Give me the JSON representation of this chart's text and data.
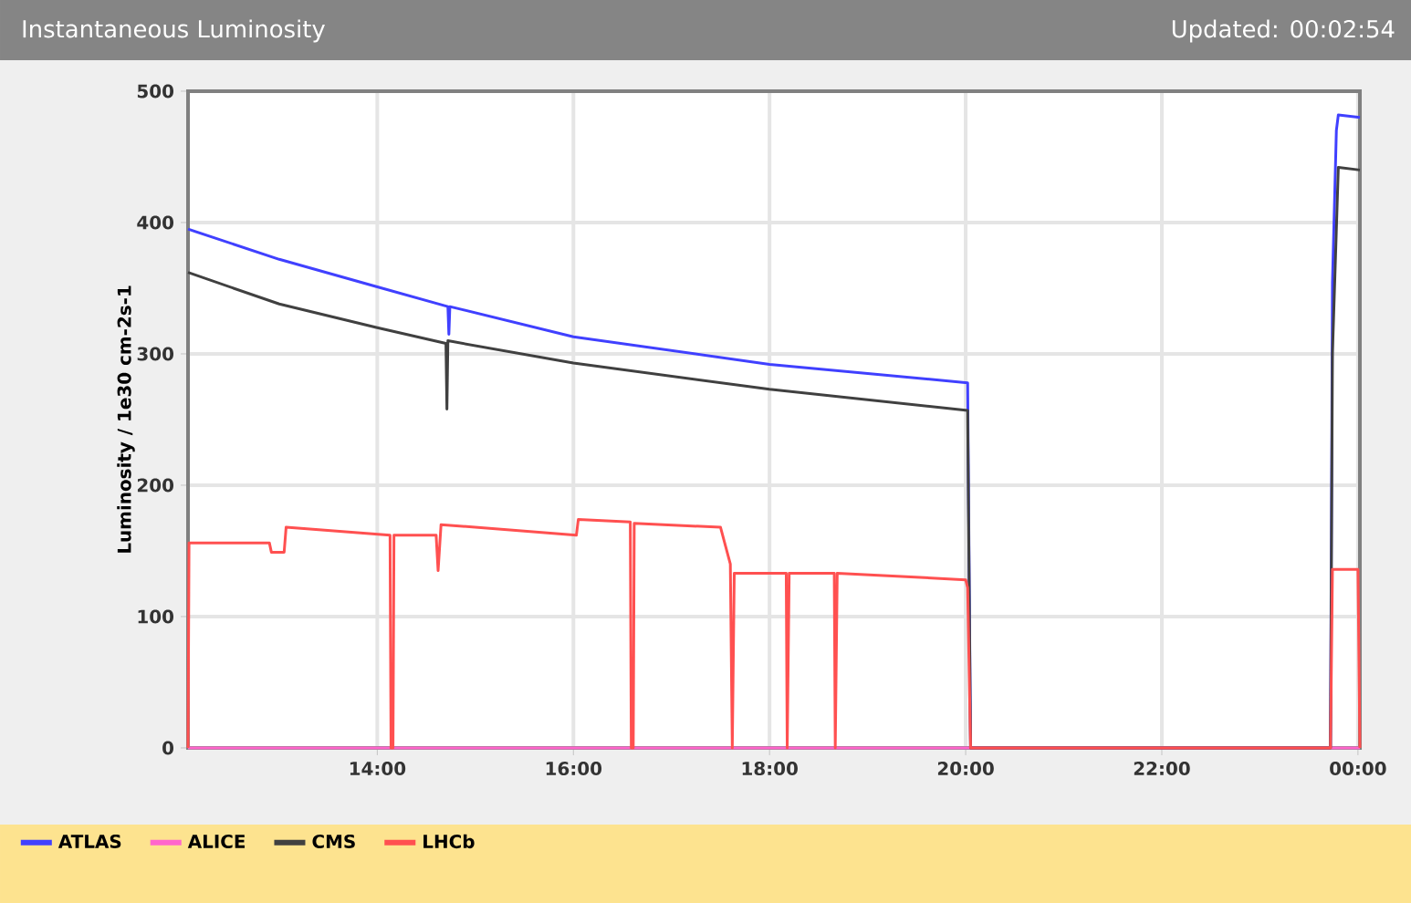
{
  "chart_data": {
    "type": "line",
    "title": "Instantaneous Luminosity",
    "subtitle": "Updated: 00:02:54",
    "ylabel": "Luminosity / 1e30 cm-2s-1",
    "xlim": [
      12.07,
      24.02
    ],
    "ylim": [
      0,
      500
    ],
    "xticks": [
      {
        "value": 14,
        "label": "14:00"
      },
      {
        "value": 16,
        "label": "16:00"
      },
      {
        "value": 18,
        "label": "18:00"
      },
      {
        "value": 20,
        "label": "20:00"
      },
      {
        "value": 22,
        "label": "22:00"
      },
      {
        "value": 24,
        "label": "00:00"
      }
    ],
    "yticks": [
      0,
      100,
      200,
      300,
      400,
      500
    ],
    "grid": true,
    "legend": "bottom",
    "marker": "none",
    "line_style": "solid",
    "series": [
      {
        "name": "ATLAS",
        "color": "#4040ff",
        "x": [
          12.07,
          13,
          14,
          14.72,
          14.73,
          14.74,
          16,
          18,
          20.02,
          20.05,
          23.72,
          23.74,
          23.78,
          23.8,
          24.02
        ],
        "values": [
          395,
          372,
          351,
          336,
          315,
          336,
          313,
          292,
          278,
          0,
          0,
          354,
          470,
          482,
          480
        ]
      },
      {
        "name": "ALICE",
        "color": "#ff66cc",
        "x": [
          12.07,
          24.02
        ],
        "values": [
          0,
          0
        ]
      },
      {
        "name": "CMS",
        "color": "#404040",
        "x": [
          12.07,
          13,
          14,
          14.7,
          14.71,
          14.72,
          16,
          18,
          20.02,
          20.05,
          23.72,
          23.74,
          23.8,
          24.02
        ],
        "values": [
          362,
          338,
          320,
          308,
          258,
          310,
          293,
          273,
          257,
          0,
          0,
          300,
          442,
          440
        ]
      },
      {
        "name": "LHCb",
        "color": "#ff5050",
        "x": [
          12.07,
          12.08,
          12.9,
          12.92,
          13.05,
          13.07,
          14.13,
          14.14,
          14.16,
          14.17,
          14.6,
          14.62,
          14.65,
          16.03,
          16.05,
          16.58,
          16.59,
          16.61,
          16.62,
          17.5,
          17.6,
          17.62,
          17.64,
          18.17,
          18.18,
          18.2,
          18.66,
          18.67,
          18.69,
          20.0,
          20.02,
          20.05,
          23.72,
          23.74,
          24.0,
          24.02
        ],
        "values": [
          0,
          156,
          156,
          149,
          149,
          168,
          162,
          0,
          0,
          162,
          162,
          135,
          170,
          162,
          174,
          172,
          0,
          0,
          171,
          168,
          140,
          0,
          133,
          133,
          0,
          133,
          133,
          0,
          133,
          128,
          122,
          0,
          0,
          136,
          136,
          0
        ]
      }
    ]
  }
}
